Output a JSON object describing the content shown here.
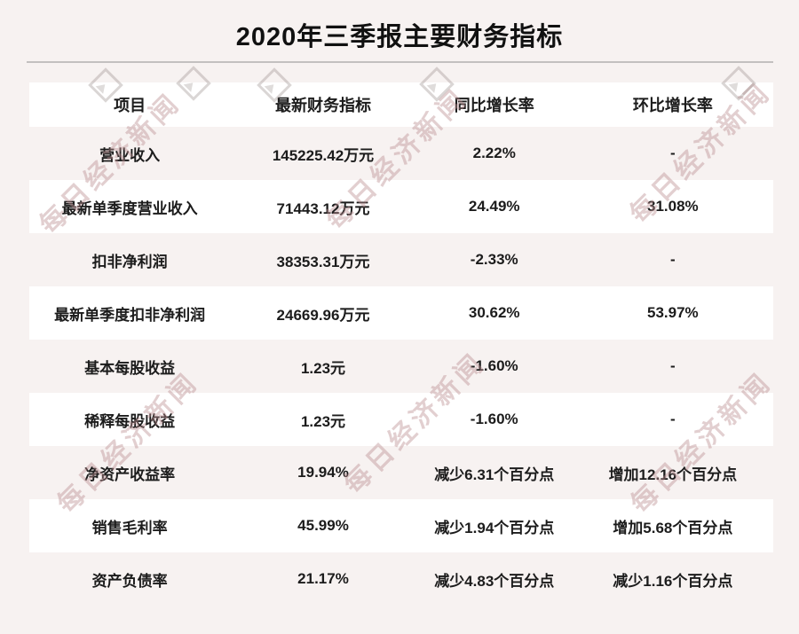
{
  "page": {
    "title": "2020年三季报主要财务指标",
    "background_color": "#f7f2f1",
    "text_color": "#1a1a1a",
    "divider_color": "#c3c0c0"
  },
  "watermark": {
    "text": "每日经济新闻",
    "color": "#ba8c90",
    "logo_icon": "nbd-diamond-mountain-logo"
  },
  "chart_data": {
    "type": "table",
    "title": "2020年三季报主要财务指标",
    "columns": [
      "项目",
      "最新财务指标",
      "同比增长率",
      "环比增长率"
    ],
    "rows": [
      [
        "营业收入",
        "145225.42万元",
        "2.22%",
        "-"
      ],
      [
        "最新单季度营业收入",
        "71443.12万元",
        "24.49%",
        "31.08%"
      ],
      [
        "扣非净利润",
        "38353.31万元",
        "-2.33%",
        "-"
      ],
      [
        "最新单季度扣非净利润",
        "24669.96万元",
        "30.62%",
        "53.97%"
      ],
      [
        "基本每股收益",
        "1.23元",
        "-1.60%",
        "-"
      ],
      [
        "稀释每股收益",
        "1.23元",
        "-1.60%",
        "-"
      ],
      [
        "净资产收益率",
        "19.94%",
        "减少6.31个百分点",
        "增加12.16个百分点"
      ],
      [
        "销售毛利率",
        "45.99%",
        "减少1.94个百分点",
        "增加5.68个百分点"
      ],
      [
        "资产负债率",
        "21.17%",
        "减少4.83个百分点",
        "减少1.16个百分点"
      ]
    ],
    "layout": {
      "header_background": "#ffffff",
      "row_stripe_colors": [
        "#f7f2f1",
        "#ffffff"
      ],
      "grid": "off",
      "alignment": "center"
    }
  }
}
